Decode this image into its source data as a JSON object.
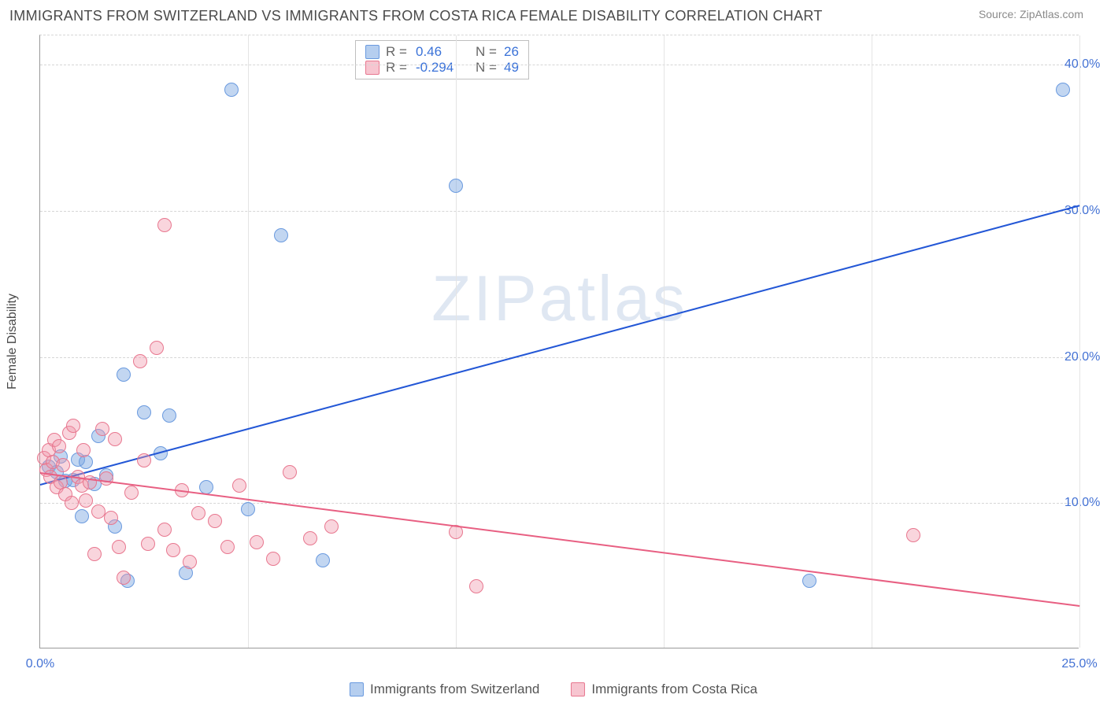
{
  "title": "IMMIGRANTS FROM SWITZERLAND VS IMMIGRANTS FROM COSTA RICA FEMALE DISABILITY CORRELATION CHART",
  "source": "Source: ZipAtlas.com",
  "ylabel": "Female Disability",
  "watermark": "ZIPatlas",
  "chart": {
    "type": "scatter",
    "xlim": [
      0,
      25
    ],
    "ylim": [
      0,
      42
    ],
    "xticks": [
      0,
      25
    ],
    "xtick_labels": [
      "0.0%",
      "25.0%"
    ],
    "yticks": [
      10,
      20,
      30,
      40
    ],
    "ytick_labels": [
      "10.0%",
      "20.0%",
      "30.0%",
      "40.0%"
    ],
    "vgrid": [
      5,
      10,
      15,
      20,
      25
    ],
    "background_color": "#ffffff",
    "grid_color": "#d6d6d6",
    "axis_color": "#999999",
    "tick_label_color": "#4472d4",
    "series": [
      {
        "name": "Immigrants from Switzerland",
        "color_fill": "rgba(120,165,225,0.45)",
        "color_stroke": "#6a9adf",
        "r": 0.46,
        "n": 26,
        "trend": {
          "x1": 0,
          "y1": 11.3,
          "x2": 25,
          "y2": 30.4,
          "color": "#2357d6",
          "width": 2
        },
        "points": [
          [
            0.2,
            12.5
          ],
          [
            0.4,
            12.1
          ],
          [
            0.5,
            13.2
          ],
          [
            0.6,
            11.5
          ],
          [
            0.8,
            11.6
          ],
          [
            0.9,
            13.0
          ],
          [
            1.0,
            9.1
          ],
          [
            1.1,
            12.8
          ],
          [
            1.3,
            11.3
          ],
          [
            1.4,
            14.6
          ],
          [
            1.6,
            11.9
          ],
          [
            1.8,
            8.4
          ],
          [
            2.0,
            18.8
          ],
          [
            2.1,
            4.7
          ],
          [
            2.5,
            16.2
          ],
          [
            2.9,
            13.4
          ],
          [
            3.1,
            16.0
          ],
          [
            3.5,
            5.2
          ],
          [
            4.0,
            11.1
          ],
          [
            4.6,
            38.3
          ],
          [
            5.0,
            9.6
          ],
          [
            5.8,
            28.3
          ],
          [
            6.8,
            6.1
          ],
          [
            10.0,
            31.7
          ],
          [
            18.5,
            4.7
          ],
          [
            24.6,
            38.3
          ]
        ]
      },
      {
        "name": "Immigrants from Costa Rica",
        "color_fill": "rgba(240,150,170,0.40)",
        "color_stroke": "#e8778f",
        "r": -0.294,
        "n": 49,
        "trend": {
          "x1": 0,
          "y1": 12.1,
          "x2": 25,
          "y2": 3.0,
          "color": "#e85f82",
          "width": 2
        },
        "points": [
          [
            0.1,
            13.1
          ],
          [
            0.15,
            12.3
          ],
          [
            0.2,
            13.6
          ],
          [
            0.25,
            11.8
          ],
          [
            0.3,
            12.8
          ],
          [
            0.35,
            14.3
          ],
          [
            0.4,
            11.1
          ],
          [
            0.45,
            13.9
          ],
          [
            0.5,
            11.4
          ],
          [
            0.55,
            12.6
          ],
          [
            0.6,
            10.6
          ],
          [
            0.7,
            14.8
          ],
          [
            0.75,
            10.0
          ],
          [
            0.8,
            15.3
          ],
          [
            0.9,
            11.8
          ],
          [
            1.0,
            11.2
          ],
          [
            1.05,
            13.6
          ],
          [
            1.1,
            10.2
          ],
          [
            1.2,
            11.4
          ],
          [
            1.3,
            6.5
          ],
          [
            1.4,
            9.4
          ],
          [
            1.5,
            15.1
          ],
          [
            1.6,
            11.7
          ],
          [
            1.7,
            9.0
          ],
          [
            1.8,
            14.4
          ],
          [
            1.9,
            7.0
          ],
          [
            2.0,
            4.9
          ],
          [
            2.2,
            10.7
          ],
          [
            2.4,
            19.7
          ],
          [
            2.5,
            12.9
          ],
          [
            2.6,
            7.2
          ],
          [
            2.8,
            20.6
          ],
          [
            3.0,
            8.2
          ],
          [
            3.2,
            6.8
          ],
          [
            3.4,
            10.9
          ],
          [
            3.6,
            6.0
          ],
          [
            3.8,
            9.3
          ],
          [
            4.2,
            8.8
          ],
          [
            4.5,
            7.0
          ],
          [
            4.8,
            11.2
          ],
          [
            5.2,
            7.3
          ],
          [
            5.6,
            6.2
          ],
          [
            6.0,
            12.1
          ],
          [
            6.5,
            7.6
          ],
          [
            7.0,
            8.4
          ],
          [
            10.0,
            8.0
          ],
          [
            10.5,
            4.3
          ],
          [
            3.0,
            29.0
          ],
          [
            21.0,
            7.8
          ]
        ]
      }
    ]
  },
  "stats_labels": {
    "r": "R =",
    "n": "N ="
  }
}
